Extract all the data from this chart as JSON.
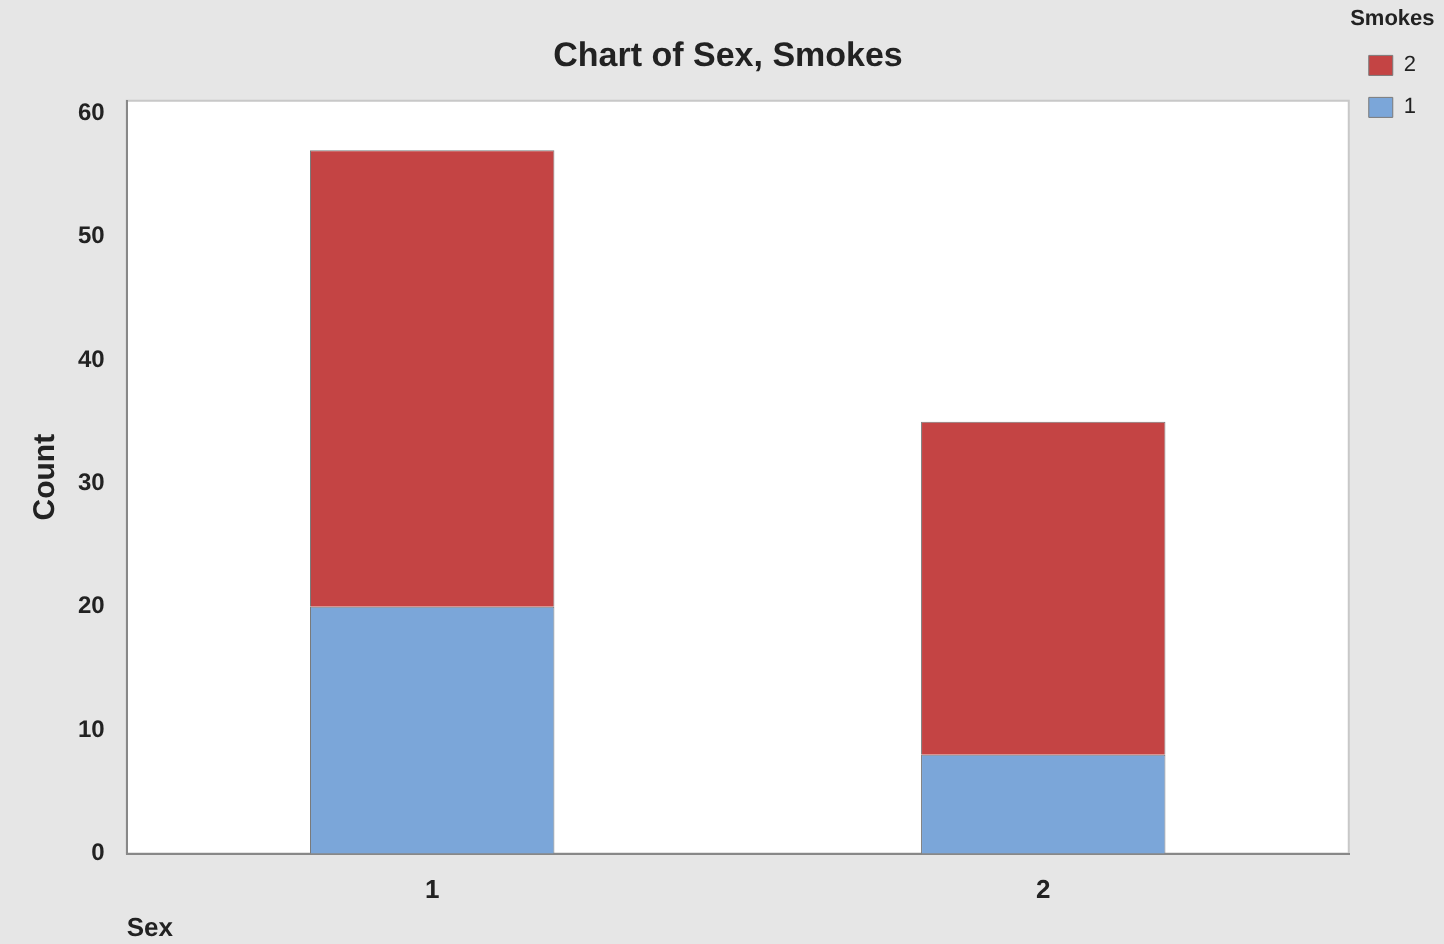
{
  "chart_data": {
    "type": "bar",
    "title": "Chart of Sex, Smokes",
    "xlabel": "Sex",
    "ylabel": "Count",
    "legend_title": "Smokes",
    "categories": [
      "1",
      "2"
    ],
    "stacked": true,
    "series": [
      {
        "name": "1",
        "color": "#7ba6d9",
        "values": [
          20,
          8
        ]
      },
      {
        "name": "2",
        "color": "#c44444",
        "values": [
          37,
          27
        ]
      }
    ],
    "ylim": [
      0,
      61
    ],
    "yticks": [
      0,
      10,
      20,
      30,
      40,
      50,
      60
    ],
    "grid": false,
    "legend": "top right"
  }
}
